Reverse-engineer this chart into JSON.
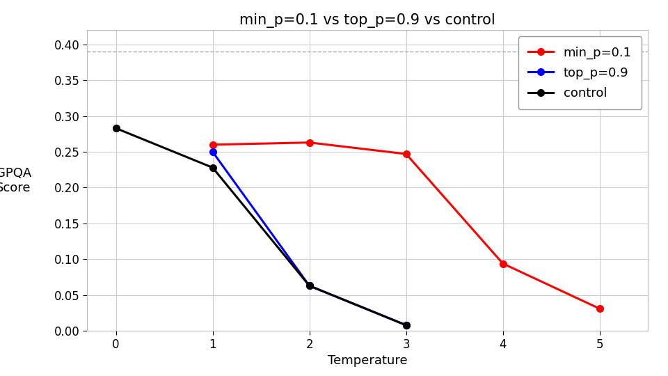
{
  "title": "min_p=0.1 vs top_p=0.9 vs control",
  "xlabel": "Temperature",
  "ylabel": "GPQA\nScore",
  "xlim": [
    -0.3,
    5.5
  ],
  "ylim": [
    0.0,
    0.42
  ],
  "yticks": [
    0.0,
    0.05,
    0.1,
    0.15,
    0.2,
    0.25,
    0.3,
    0.35,
    0.4
  ],
  "xticks": [
    0,
    1,
    2,
    3,
    4,
    5
  ],
  "dashed_line_y": 0.39,
  "series": [
    {
      "label": "min_p=0.1",
      "color": "red",
      "x": [
        1,
        2,
        3,
        4,
        5
      ],
      "y": [
        0.26,
        0.263,
        0.247,
        0.094,
        0.031
      ]
    },
    {
      "label": "top_p=0.9",
      "color": "blue",
      "x": [
        1,
        2,
        3
      ],
      "y": [
        0.25,
        0.063,
        0.008
      ]
    },
    {
      "label": "control",
      "color": "black",
      "x": [
        0,
        1,
        2,
        3
      ],
      "y": [
        0.283,
        0.228,
        0.063,
        0.008
      ]
    }
  ],
  "background_color": "#ffffff",
  "plot_bg_color": "#ffffff",
  "grid_color": "#cccccc",
  "title_fontsize": 15,
  "label_fontsize": 13,
  "tick_fontsize": 12,
  "legend_fontsize": 13,
  "line_width": 2.2,
  "marker_size": 7
}
